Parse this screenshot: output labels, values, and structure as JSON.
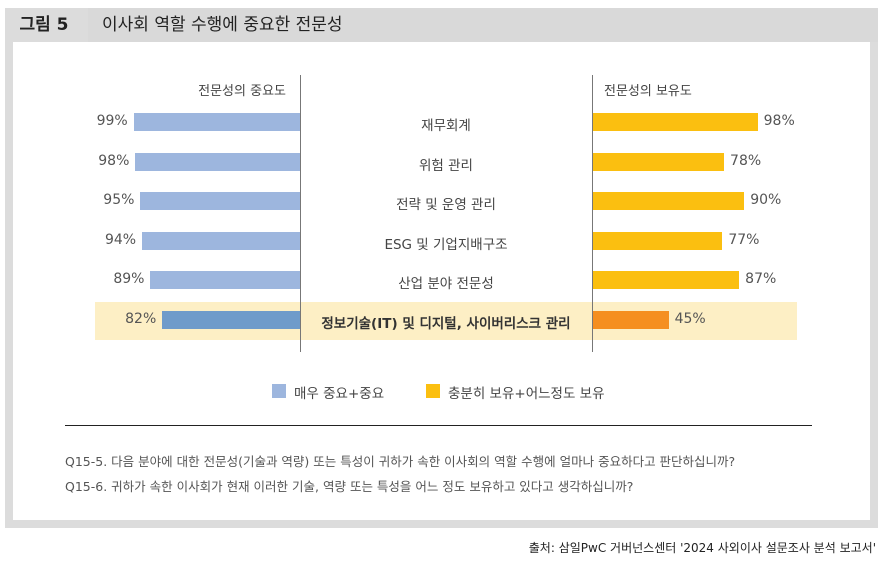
{
  "figure_label": "그림 5",
  "title": "이사회 역할 수행에 중요한 전문성",
  "chart_data": {
    "type": "bar",
    "orientation": "horizontal-butterfly",
    "categories": [
      "재무회계",
      "위험 관리",
      "전략 및 운영 관리",
      "ESG 및 기업지배구조",
      "산업 분야 전문성",
      "정보기술(IT) 및 디지털, 사이버리스크 관리"
    ],
    "left_header": "전문성의 중요도",
    "right_header": "전문성의 보유도",
    "series": [
      {
        "name": "매우 중요+중요",
        "values": [
          99,
          98,
          95,
          94,
          89,
          82
        ],
        "labels": [
          "99%",
          "98%",
          "95%",
          "94%",
          "89%",
          "82%"
        ],
        "color": "#9db6de",
        "highlight_color": "#6f9bca"
      },
      {
        "name": "충분히 보유+어느정도 보유",
        "values": [
          98,
          78,
          90,
          77,
          87,
          45
        ],
        "labels": [
          "98%",
          "78%",
          "90%",
          "77%",
          "87%",
          "45%"
        ],
        "color": "#fbbf10",
        "highlight_color": "#f58f20"
      }
    ],
    "highlighted_category_index": 5,
    "highlight_background": "#fdefc5",
    "xlim": [
      0,
      100
    ],
    "legend_position": "bottom"
  },
  "questions": [
    "Q15-5. 다음 분야에 대한 전문성(기술과 역량) 또는 특성이 귀하가 속한 이사회의 역할 수행에 얼마나 중요하다고 판단하십니까?",
    "Q15-6. 귀하가 속한 이사회가 현재 이러한 기술, 역량 또는 특성을 어느 정도 보유하고 있다고 생각하십니까?"
  ],
  "source": "출처: 삼일PwC 거버넌스센터 '2024 사외이사 설문조사 분석 보고서'"
}
